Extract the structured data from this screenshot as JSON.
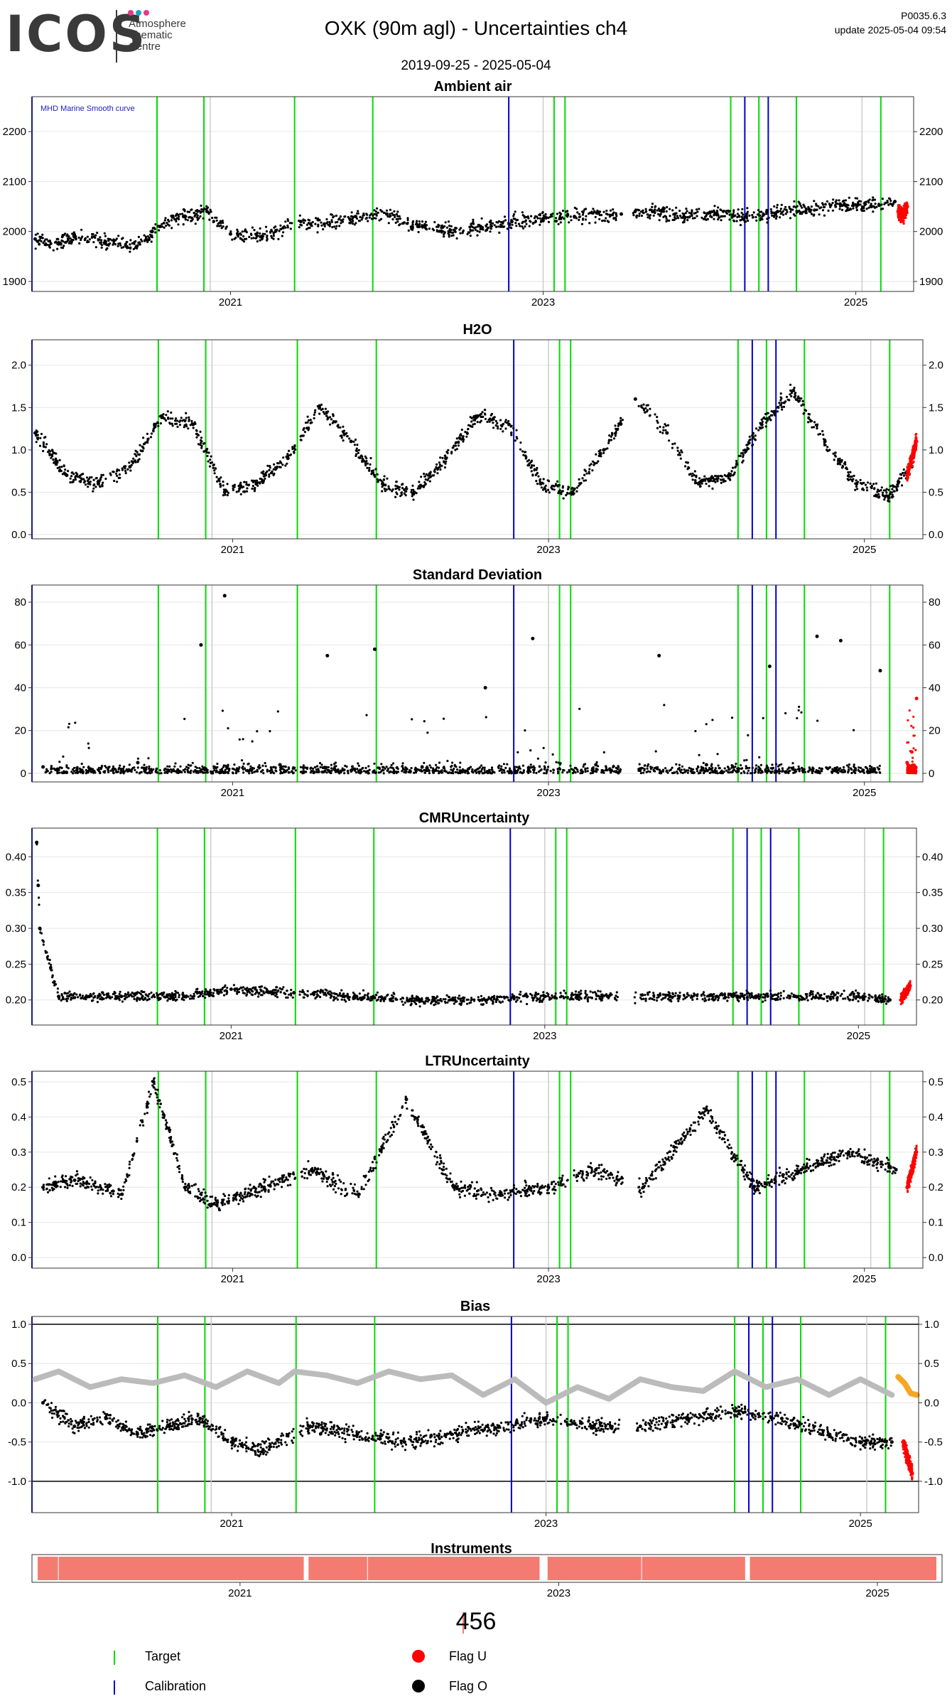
{
  "header": {
    "logo_text": "ICOS",
    "logo_sub": [
      "Atmosphere",
      "Thematic",
      "Centre"
    ],
    "logo_dot_colors": [
      "#e63888",
      "#1fa3c5",
      "#e63888"
    ],
    "title": "OXK  (90m agl) - Uncertainties ch4",
    "code": "P0035.6.3",
    "update": "update  2025-05-04 09:54",
    "date_range": "2019-09-25 - 2025-05-04"
  },
  "colors": {
    "target": "#00dd00",
    "calibration": "#0000cc",
    "flag_u": "#ff0000",
    "flag_o": "#000000",
    "bias_smooth": "#bbbbbb",
    "bias_recent": "#f5a623",
    "instrument": "#f47b72"
  },
  "events": {
    "target_years": [
      2020.53,
      2020.83,
      2021.41,
      2021.91,
      2023.07,
      2023.14,
      2024.2,
      2024.38,
      2024.62,
      2025.16
    ],
    "calibration_years": [
      2019.73,
      2022.78,
      2024.29,
      2024.44
    ],
    "gray_years": [
      2020.87,
      2023.0,
      2025.04
    ]
  },
  "chart_data": [
    {
      "type": "scatter",
      "title": "Ambient air",
      "annotation": "MHD Marine Smooth curve",
      "xlim": [
        2019.73,
        2025.37
      ],
      "ylim": [
        1880,
        2270
      ],
      "yticks": [
        1900,
        2000,
        2100,
        2200
      ],
      "xticks": [
        "2021",
        "2023",
        "2025"
      ],
      "grid": true,
      "series": [
        {
          "flag": "O",
          "x": [
            2019.75,
            2019.9,
            2020.0,
            2020.2,
            2020.4,
            2020.55,
            2020.7,
            2020.85,
            2021.0,
            2021.2,
            2021.45,
            2021.6,
            2021.8,
            2022.0,
            2022.2,
            2022.4,
            2022.6,
            2022.8,
            2023.0,
            2023.2,
            2023.5,
            2023.7,
            2023.9,
            2024.1,
            2024.3,
            2024.5,
            2024.7,
            2024.9,
            2025.1,
            2025.25
          ],
          "y": [
            1985,
            1975,
            1990,
            1980,
            1970,
            2010,
            2030,
            2040,
            1995,
            1990,
            2020,
            2015,
            2030,
            2035,
            2010,
            2000,
            2010,
            2020,
            2025,
            2030,
            2035,
            2040,
            2030,
            2035,
            2030,
            2040,
            2045,
            2055,
            2050,
            2060
          ]
        },
        {
          "flag": "U",
          "x": [
            2025.27,
            2025.3,
            2025.33
          ],
          "y": [
            2040,
            2030,
            2050
          ]
        }
      ]
    },
    {
      "type": "scatter",
      "title": "H2O",
      "xlim": [
        2019.73,
        2025.37
      ],
      "ylim": [
        -0.05,
        2.3
      ],
      "yticks": [
        0.0,
        0.5,
        1.0,
        1.5,
        2.0
      ],
      "xticks": [
        "2021",
        "2023",
        "2025"
      ],
      "grid": true,
      "series": [
        {
          "flag": "O",
          "x": [
            2019.75,
            2019.95,
            2020.15,
            2020.35,
            2020.55,
            2020.75,
            2020.95,
            2021.15,
            2021.35,
            2021.55,
            2021.75,
            2021.95,
            2022.15,
            2022.35,
            2022.55,
            2022.75,
            2022.95,
            2023.15,
            2023.35,
            2023.55,
            2023.75,
            2023.95,
            2024.15,
            2024.35,
            2024.55,
            2024.75,
            2024.95,
            2025.15,
            2025.3
          ],
          "y": [
            1.2,
            0.7,
            0.6,
            0.8,
            1.4,
            1.3,
            0.5,
            0.6,
            0.9,
            1.5,
            1.1,
            0.6,
            0.5,
            0.9,
            1.4,
            1.3,
            0.6,
            0.5,
            1.0,
            1.6,
            1.2,
            0.6,
            0.7,
            1.3,
            1.7,
            1.1,
            0.6,
            0.45,
            0.8
          ]
        },
        {
          "flag": "U",
          "x": [
            2025.27,
            2025.3,
            2025.33
          ],
          "y": [
            0.7,
            0.9,
            1.1
          ]
        }
      ]
    },
    {
      "type": "scatter",
      "title": "Standard Deviation",
      "xlim": [
        2019.73,
        2025.37
      ],
      "ylim": [
        -4,
        88
      ],
      "yticks": [
        0,
        20,
        40,
        60,
        80
      ],
      "xticks": [
        "2021",
        "2023",
        "2025"
      ],
      "grid": true,
      "series": [
        {
          "flag": "O",
          "x": [
            2019.8,
            2020.1,
            2020.4,
            2020.8,
            2020.95,
            2021.3,
            2021.6,
            2021.9,
            2022.2,
            2022.6,
            2022.9,
            2023.3,
            2023.7,
            2024.0,
            2024.4,
            2024.7,
            2024.85,
            2025.1
          ],
          "y": [
            3,
            2,
            5,
            60,
            83,
            4,
            55,
            58,
            3,
            40,
            63,
            4,
            55,
            4,
            50,
            64,
            62,
            48
          ]
        },
        {
          "flag": "U",
          "x": [
            2025.27,
            2025.3,
            2025.33
          ],
          "y": [
            5,
            10,
            35
          ]
        }
      ]
    },
    {
      "type": "scatter",
      "title": "CMRUncertainty",
      "xlim": [
        2019.73,
        2025.37
      ],
      "ylim": [
        0.165,
        0.44
      ],
      "yticks": [
        0.2,
        0.25,
        0.3,
        0.35,
        0.4
      ],
      "xticks": [
        "2021",
        "2023",
        "2025"
      ],
      "grid": true,
      "series": [
        {
          "flag": "O",
          "x": [
            2019.76,
            2019.77,
            2019.78,
            2019.9,
            2020.3,
            2020.7,
            2021.0,
            2021.4,
            2021.8,
            2022.2,
            2022.6,
            2023.0,
            2023.4,
            2023.8,
            2024.2,
            2024.6,
            2025.0,
            2025.2
          ],
          "y": [
            0.42,
            0.36,
            0.3,
            0.205,
            0.205,
            0.205,
            0.215,
            0.21,
            0.205,
            0.2,
            0.2,
            0.205,
            0.205,
            0.205,
            0.205,
            0.205,
            0.205,
            0.2
          ]
        },
        {
          "flag": "U",
          "x": [
            2025.27,
            2025.3,
            2025.33
          ],
          "y": [
            0.2,
            0.21,
            0.22
          ]
        }
      ]
    },
    {
      "type": "scatter",
      "title": "LTRUncertainty",
      "xlim": [
        2019.73,
        2025.37
      ],
      "ylim": [
        -0.03,
        0.53
      ],
      "yticks": [
        0.0,
        0.1,
        0.2,
        0.3,
        0.4,
        0.5
      ],
      "xticks": [
        "2021",
        "2023",
        "2025"
      ],
      "grid": true,
      "series": [
        {
          "flag": "O",
          "x": [
            2019.8,
            2020.0,
            2020.3,
            2020.5,
            2020.7,
            2020.9,
            2021.2,
            2021.5,
            2021.8,
            2022.1,
            2022.4,
            2022.7,
            2023.0,
            2023.3,
            2023.6,
            2024.0,
            2024.3,
            2024.6,
            2024.9,
            2025.2
          ],
          "y": [
            0.2,
            0.22,
            0.18,
            0.5,
            0.2,
            0.15,
            0.2,
            0.25,
            0.18,
            0.45,
            0.2,
            0.18,
            0.2,
            0.25,
            0.2,
            0.42,
            0.2,
            0.25,
            0.3,
            0.25
          ]
        },
        {
          "flag": "U",
          "x": [
            2025.27,
            2025.3,
            2025.33
          ],
          "y": [
            0.2,
            0.25,
            0.3
          ]
        }
      ]
    },
    {
      "type": "scatter",
      "title": "Bias",
      "xlim": [
        2019.73,
        2025.37
      ],
      "ylim": [
        -1.4,
        1.1
      ],
      "yticks": [
        -1.0,
        -0.5,
        0.0,
        0.5,
        1.0
      ],
      "xticks": [
        "2021",
        "2023",
        "2025"
      ],
      "grid": true,
      "reference_lines": [
        -1.0,
        1.0
      ],
      "series": [
        {
          "flag": "O",
          "x": [
            2019.8,
            2020.0,
            2020.2,
            2020.4,
            2020.6,
            2020.8,
            2021.0,
            2021.2,
            2021.5,
            2021.8,
            2022.1,
            2022.4,
            2022.7,
            2023.0,
            2023.3,
            2023.6,
            2023.9,
            2024.2,
            2024.5,
            2024.8,
            2025.0,
            2025.2
          ],
          "y": [
            0.0,
            -0.3,
            -0.2,
            -0.4,
            -0.3,
            -0.2,
            -0.5,
            -0.6,
            -0.3,
            -0.4,
            -0.5,
            -0.4,
            -0.3,
            -0.2,
            -0.3,
            -0.3,
            -0.2,
            -0.1,
            -0.2,
            -0.4,
            -0.5,
            -0.5
          ]
        },
        {
          "flag": "U",
          "x": [
            2025.27,
            2025.3,
            2025.33
          ],
          "y": [
            -0.5,
            -0.7,
            -0.9
          ]
        },
        {
          "flag": "smooth",
          "x": [
            2019.75,
            2019.9,
            2020.1,
            2020.3,
            2020.5,
            2020.7,
            2020.9,
            2021.1,
            2021.3,
            2021.4,
            2021.6,
            2021.8,
            2022.0,
            2022.2,
            2022.4,
            2022.6,
            2022.8,
            2023.0,
            2023.2,
            2023.4,
            2023.6,
            2023.8,
            2024.0,
            2024.2,
            2024.4,
            2024.6,
            2024.8,
            2025.0,
            2025.2
          ],
          "y": [
            0.3,
            0.4,
            0.2,
            0.3,
            0.25,
            0.35,
            0.2,
            0.4,
            0.25,
            0.4,
            0.35,
            0.25,
            0.4,
            0.3,
            0.35,
            0.1,
            0.3,
            0.0,
            0.2,
            0.05,
            0.3,
            0.2,
            0.15,
            0.4,
            0.2,
            0.3,
            0.1,
            0.3,
            0.1
          ]
        },
        {
          "flag": "recent",
          "x": [
            2025.24,
            2025.28,
            2025.32,
            2025.36
          ],
          "y": [
            0.33,
            0.25,
            0.12,
            0.1
          ]
        }
      ]
    }
  ],
  "instruments": {
    "title": "Instruments",
    "segments": [
      [
        2019.73,
        2021.4
      ],
      [
        2021.43,
        2022.88
      ],
      [
        2022.93,
        2024.17
      ],
      [
        2024.2,
        2025.37
      ]
    ],
    "xticks": [
      "2021",
      "2023",
      "2025"
    ],
    "label": "456"
  },
  "legend": [
    {
      "label": "Target",
      "kind": "line",
      "color_key": "target"
    },
    {
      "label": "Calibration",
      "kind": "line",
      "color_key": "calibration"
    },
    {
      "label": "Flag U",
      "kind": "dot",
      "color_key": "flag_u"
    },
    {
      "label": "Flag O",
      "kind": "dot",
      "color_key": "flag_o"
    }
  ]
}
